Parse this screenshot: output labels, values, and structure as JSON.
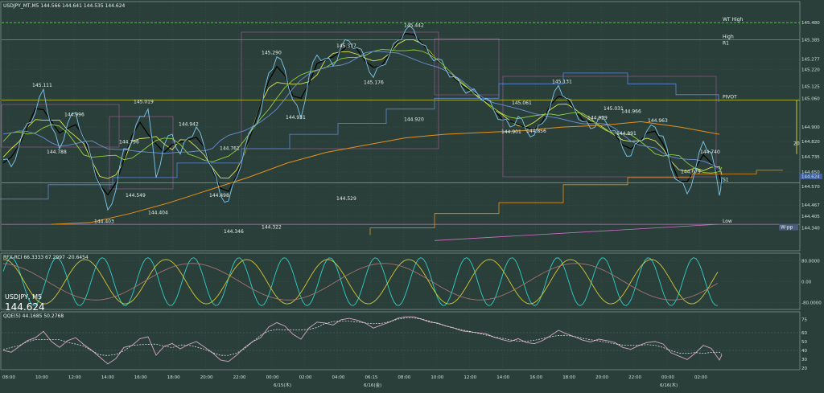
{
  "header": {
    "main": "USDJPY_MT,M5  144.566 144.641 144.535 144.624",
    "rci": "RFX-RCI 66.3333 67.2997 -20.6454",
    "qqe": "QQE(5) 44.1685 50.2768",
    "symbol": "USDJPY, M5",
    "last": "144.624"
  },
  "colors": {
    "background": "#2a3f3a",
    "price": "#7ec8f0",
    "ma_black": "#000000",
    "ma_yellow": "#e0e850",
    "ma_green": "#90d040",
    "ma_blue": "#6b8fd8",
    "ma_orange": "#e8901a",
    "pivot": "#c8c830",
    "wt_high": "#60d060",
    "rci_cyan": "#30d0c8",
    "rci_yellow": "#d8c830",
    "qqe": "#d8a8c0"
  },
  "chart_data": [
    {
      "type": "line",
      "panel": "price",
      "title": "USDJPY, M5",
      "ylim": [
        144.24,
        145.57
      ],
      "y_ticks": [
        "145.480",
        "145.385",
        "145.277",
        "145.220",
        "145.125",
        "145.060",
        "144.900",
        "144.820",
        "144.735",
        "144.650",
        "144.570",
        "144.467",
        "144.405",
        "144.340"
      ],
      "x_ticks": [
        "08:00",
        "10:00",
        "12:00",
        "14:00",
        "16:00",
        "18:00",
        "20:00",
        "22:00",
        "00:00",
        "02:00",
        "04:00",
        "06:15",
        "08:00",
        "10:00",
        "12:00",
        "14:00",
        "16:00",
        "18:00",
        "20:00",
        "22:00",
        "00:00",
        "02:00"
      ],
      "date_labels": [
        "6/15(木)",
        "6/16(金)",
        "6/16(木)"
      ],
      "levels": [
        {
          "name": "WT High",
          "value": 145.48
        },
        {
          "name": "High",
          "value": 145.385
        },
        {
          "name": "PIVOT",
          "value": 145.05
        },
        {
          "name": "S1",
          "value": 144.59
        },
        {
          "name": "Low",
          "value": 144.36
        }
      ],
      "right_tags": [
        "R1",
        "W-pp"
      ],
      "range_label": "20",
      "series": [
        {
          "name": "price",
          "x": [
            0,
            10,
            20,
            30,
            40,
            50,
            60,
            70,
            80,
            90,
            100,
            110,
            120,
            130,
            140,
            150,
            160,
            170,
            180,
            190,
            200,
            210,
            220,
            230,
            240,
            250,
            260,
            270,
            280,
            290,
            300,
            310,
            320,
            330,
            340,
            350,
            360,
            370,
            380,
            390,
            400,
            410,
            420,
            430,
            440,
            450,
            460,
            470,
            480,
            490,
            500,
            510,
            520,
            530,
            540,
            550,
            560,
            570,
            580,
            590,
            600,
            610,
            620,
            630,
            640,
            650,
            660,
            670,
            680,
            690,
            700,
            710,
            720,
            730,
            740,
            750,
            760,
            770,
            780,
            790,
            800,
            810,
            820,
            830,
            840,
            850,
            860,
            870,
            880,
            890,
            893
          ],
          "values": [
            144.72,
            144.68,
            144.8,
            144.92,
            144.98,
            145.11,
            144.9,
            144.78,
            144.92,
            144.98,
            144.84,
            144.72,
            144.58,
            144.44,
            144.55,
            144.78,
            144.82,
            144.96,
            145.0,
            144.62,
            144.8,
            144.86,
            144.75,
            144.84,
            144.9,
            144.79,
            144.67,
            144.52,
            144.49,
            144.62,
            144.78,
            144.9,
            144.98,
            145.2,
            145.29,
            145.22,
            145.05,
            144.95,
            145.18,
            145.3,
            145.28,
            145.24,
            145.35,
            145.377,
            145.34,
            145.28,
            145.176,
            145.24,
            145.3,
            145.38,
            145.44,
            145.442,
            145.36,
            145.3,
            145.28,
            145.22,
            145.18,
            145.12,
            145.1,
            145.08,
            145.06,
            144.99,
            144.94,
            144.901,
            144.96,
            144.88,
            144.856,
            144.92,
            145.02,
            145.131,
            145.06,
            145.0,
            144.93,
            144.891,
            144.95,
            144.92,
            144.88,
            144.78,
            144.74,
            144.82,
            144.88,
            144.9,
            144.85,
            144.67,
            144.6,
            144.529,
            144.66,
            144.82,
            144.76,
            144.52,
            144.624
          ]
        }
      ],
      "annotations": [
        "145.442",
        "145.377",
        "145.290",
        "145.176",
        "145.111",
        "144.996",
        "145.019",
        "144.942",
        "144.796",
        "144.788",
        "144.761",
        "144.549",
        "144.498",
        "144.403",
        "144.404",
        "144.346",
        "144.931",
        "144.901",
        "144.856",
        "145.061",
        "145.131",
        "145.031",
        "144.929",
        "144.891",
        "144.966",
        "144.963",
        "144.740",
        "144.679",
        "144.920",
        "144.529",
        "144.322"
      ]
    },
    {
      "type": "line",
      "panel": "rci",
      "title": "RFX-RCI",
      "ylim": [
        -100,
        100
      ],
      "y_ticks": [
        "80.0000",
        "0.00",
        "-80.0000"
      ]
    },
    {
      "type": "line",
      "panel": "qqe",
      "title": "QQE(5)",
      "ylim": [
        20,
        80
      ],
      "y_ticks": [
        "75",
        "60",
        "50",
        "40",
        "30",
        "20"
      ]
    }
  ]
}
